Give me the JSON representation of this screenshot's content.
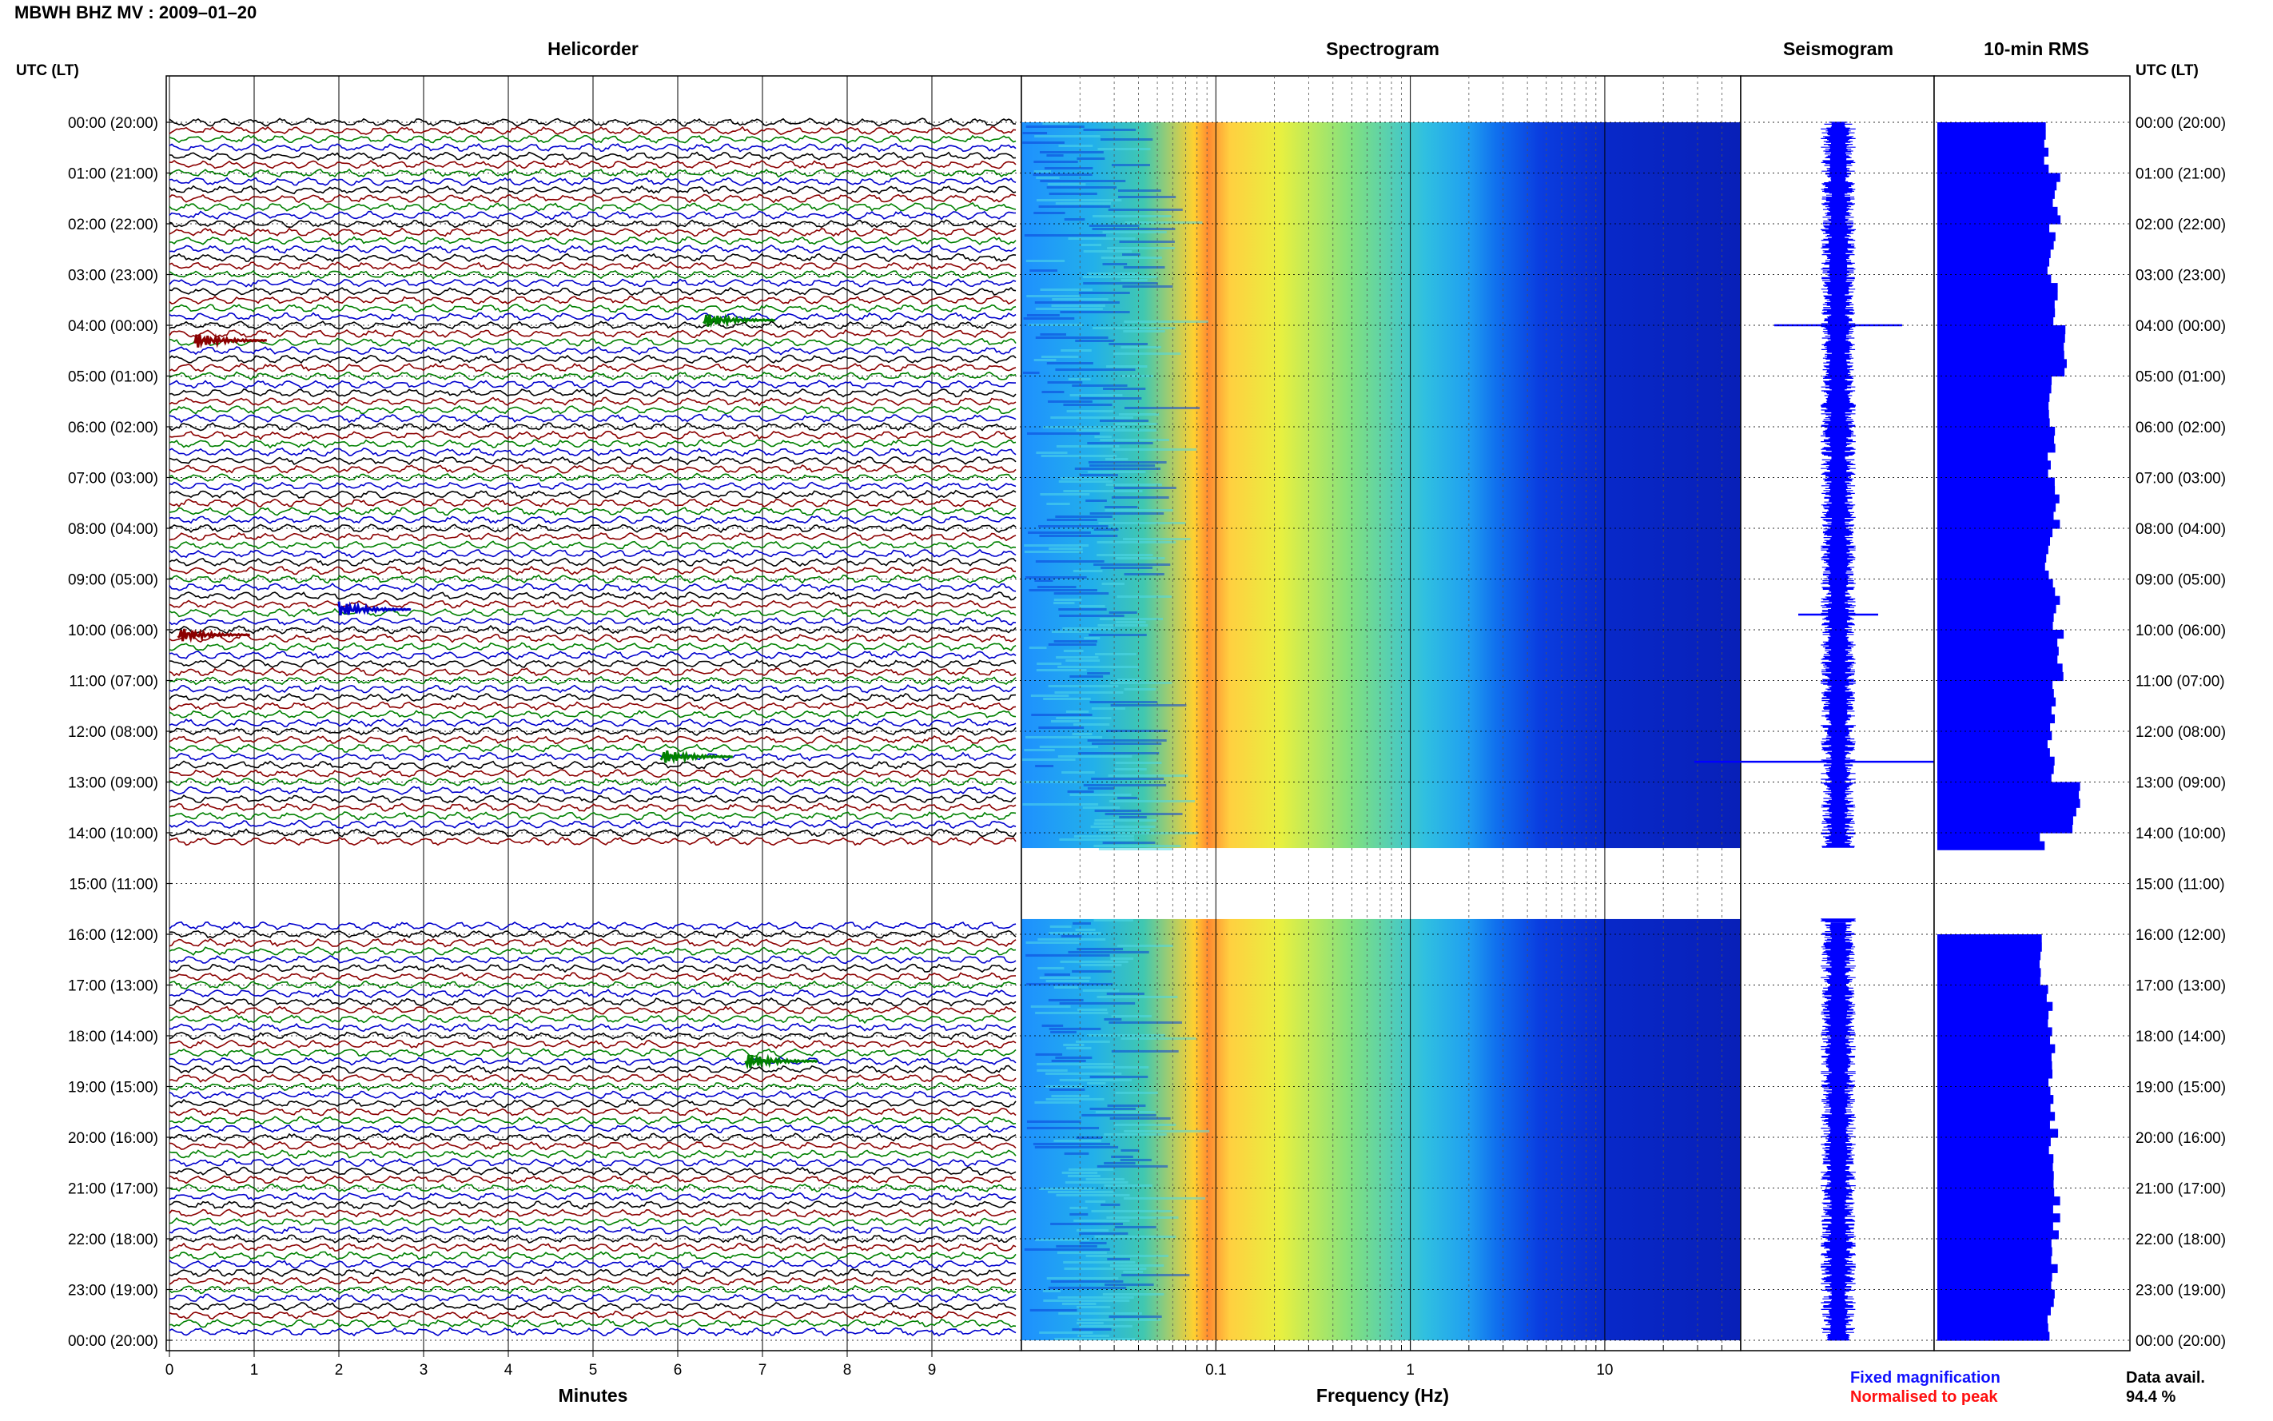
{
  "header": {
    "title": "MBWH BHZ MV : 2009–01–20",
    "utc_label": "UTC (LT)"
  },
  "panels": {
    "helicorder": "Helicorder",
    "spectrogram": "Spectrogram",
    "seismogram": "Seismogram",
    "rms": "10-min RMS"
  },
  "footer": {
    "minutes_label": "Minutes",
    "frequency_label": "Frequency (Hz)",
    "fixed_magnification": "Fixed magnification",
    "normalised_to_peak": "Normalised to peak",
    "data_avail_label": "Data avail.",
    "data_avail_value": "94.4 %"
  },
  "colors": {
    "trace_colors": [
      "#000000",
      "#8b0000",
      "#008000",
      "#0000cd"
    ],
    "fixed_magnification": "#1010ff",
    "normalised_to_peak": "#ff1010",
    "rms_bar": "#0000ff",
    "seismogram": "#0000ff"
  },
  "chart_data": [
    {
      "type": "line",
      "name": "helicorder",
      "title": "Helicorder",
      "xlabel": "Minutes",
      "x_ticks": [
        "0",
        "1",
        "2",
        "3",
        "4",
        "5",
        "6",
        "7",
        "8",
        "9"
      ],
      "xlim": [
        0,
        10
      ],
      "row_labels": [
        "00:00 (20:00)",
        "01:00 (21:00)",
        "02:00 (22:00)",
        "03:00 (23:00)",
        "04:00 (00:00)",
        "05:00 (01:00)",
        "06:00 (02:00)",
        "07:00 (03:00)",
        "08:00 (04:00)",
        "09:00 (05:00)",
        "10:00 (06:00)",
        "11:00 (07:00)",
        "12:00 (08:00)",
        "13:00 (09:00)",
        "14:00 (10:00)",
        "15:00 (11:00)",
        "16:00 (12:00)",
        "17:00 (13:00)",
        "18:00 (14:00)",
        "19:00 (15:00)",
        "20:00 (16:00)",
        "21:00 (17:00)",
        "22:00 (18:00)",
        "23:00 (19:00)",
        "00:00 (20:00)"
      ],
      "gap_hours": [
        14.3,
        15.7
      ],
      "events": [
        {
          "hour": 3.9,
          "minute": 6.3
        },
        {
          "hour": 4.3,
          "minute": 0.3
        },
        {
          "hour": 9.6,
          "minute": 2.0
        },
        {
          "hour": 10.1,
          "minute": 0.1
        },
        {
          "hour": 12.5,
          "minute": 5.8
        },
        {
          "hour": 18.5,
          "minute": 6.8
        }
      ]
    },
    {
      "type": "heatmap",
      "name": "spectrogram",
      "title": "Spectrogram",
      "xlabel": "Frequency (Hz)",
      "x_scale": "log",
      "xlim": [
        0.01,
        50
      ],
      "x_ticks": [
        "0.1",
        "1",
        "10"
      ],
      "energy_peak_hz": 0.2
    },
    {
      "type": "line",
      "name": "seismogram",
      "title": "Seismogram",
      "spikes": [
        {
          "hour": 4.0,
          "amplitude": 0.8
        },
        {
          "hour": 9.7,
          "amplitude": 0.5
        },
        {
          "hour": 12.6,
          "amplitude": 1.8
        }
      ]
    },
    {
      "type": "bar",
      "name": "rms",
      "title": "10-min RMS",
      "values_hourly": [
        0.78,
        0.86,
        0.82,
        0.84,
        0.92,
        0.8,
        0.82,
        0.86,
        0.8,
        0.86,
        0.88,
        0.84,
        0.82,
        1.0,
        0.76,
        0,
        0.76,
        0.8,
        0.82,
        0.84,
        0.82,
        0.86,
        0.84,
        0.82
      ]
    }
  ]
}
